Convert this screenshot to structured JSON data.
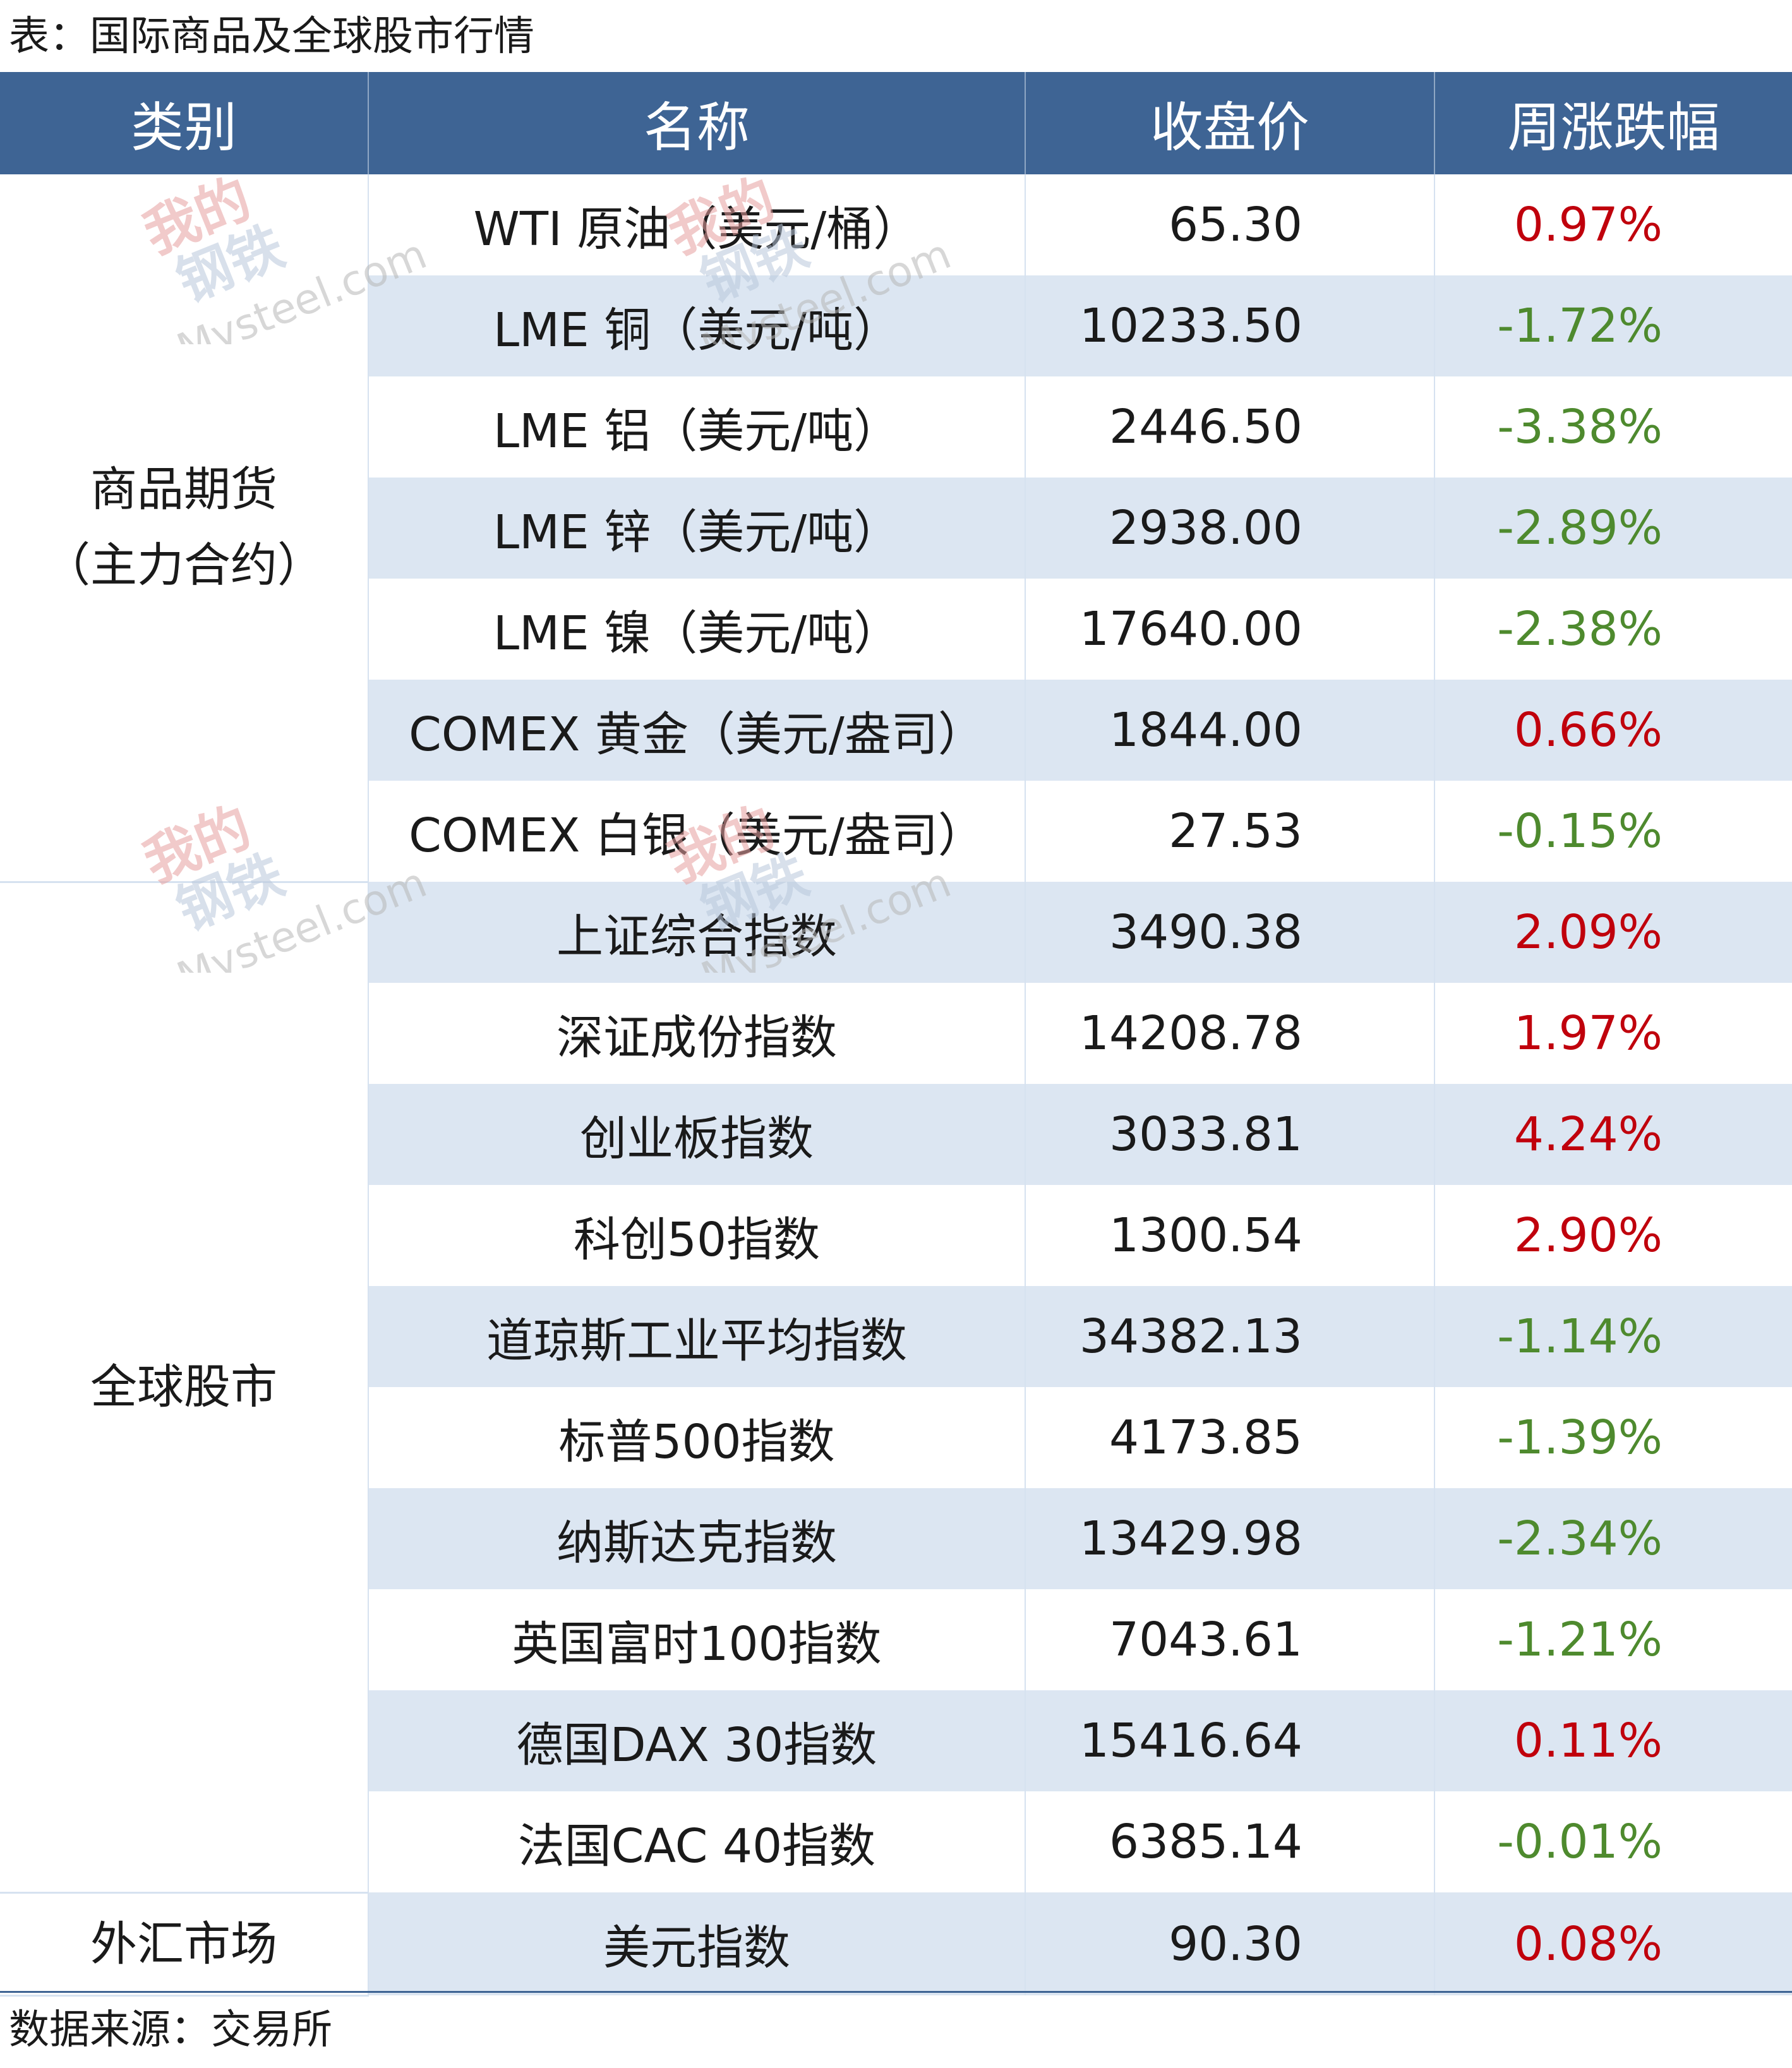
{
  "caption": "表：国际商品及全球股市行情",
  "headers": [
    "类别",
    "名称",
    "收盘价",
    "周涨跌幅"
  ],
  "groups": [
    {
      "category": "商品期货（主力合约）",
      "rows": [
        {
          "name": "WTI 原油（美元/桶）",
          "close": "65.30",
          "change": "0.97%",
          "dir": "up"
        },
        {
          "name": "LME 铜（美元/吨）",
          "close": "10233.50",
          "change": "-1.72%",
          "dir": "down"
        },
        {
          "name": "LME 铝（美元/吨）",
          "close": "2446.50",
          "change": "-3.38%",
          "dir": "down"
        },
        {
          "name": "LME 锌（美元/吨）",
          "close": "2938.00",
          "change": "-2.89%",
          "dir": "down"
        },
        {
          "name": "LME 镍（美元/吨）",
          "close": "17640.00",
          "change": "-2.38%",
          "dir": "down"
        },
        {
          "name": "COMEX 黄金（美元/盎司）",
          "close": "1844.00",
          "change": "0.66%",
          "dir": "up"
        },
        {
          "name": "COMEX 白银（美元/盎司）",
          "close": "27.53",
          "change": "-0.15%",
          "dir": "down"
        }
      ]
    },
    {
      "category": "全球股市",
      "rows": [
        {
          "name": "上证综合指数",
          "close": "3490.38",
          "change": "2.09%",
          "dir": "up"
        },
        {
          "name": "深证成份指数",
          "close": "14208.78",
          "change": "1.97%",
          "dir": "up"
        },
        {
          "name": "创业板指数",
          "close": "3033.81",
          "change": "4.24%",
          "dir": "up"
        },
        {
          "name": "科创50指数",
          "close": "1300.54",
          "change": "2.90%",
          "dir": "up"
        },
        {
          "name": "道琼斯工业平均指数",
          "close": "34382.13",
          "change": "-1.14%",
          "dir": "down"
        },
        {
          "name": "标普500指数",
          "close": "4173.85",
          "change": "-1.39%",
          "dir": "down"
        },
        {
          "name": "纳斯达克指数",
          "close": "13429.98",
          "change": "-2.34%",
          "dir": "down"
        },
        {
          "name": "英国富时100指数",
          "close": "7043.61",
          "change": "-1.21%",
          "dir": "down"
        },
        {
          "name": "德国DAX 30指数",
          "close": "15416.64",
          "change": "0.11%",
          "dir": "up"
        },
        {
          "name": "法国CAC 40指数",
          "close": "6385.14",
          "change": "-0.01%",
          "dir": "down"
        }
      ]
    },
    {
      "category": "外汇市场",
      "rows": [
        {
          "name": "美元指数",
          "close": "90.30",
          "change": "0.08%",
          "dir": "up"
        }
      ]
    }
  ],
  "source": "数据来源：交易所",
  "watermark": {
    "cn": "我的钢铁",
    "en": "Mysteel.com"
  },
  "colors": {
    "header_bg": "#3e6494",
    "stripe": "#dce6f2",
    "up": "#c0000c",
    "down": "#4e8a2e"
  }
}
